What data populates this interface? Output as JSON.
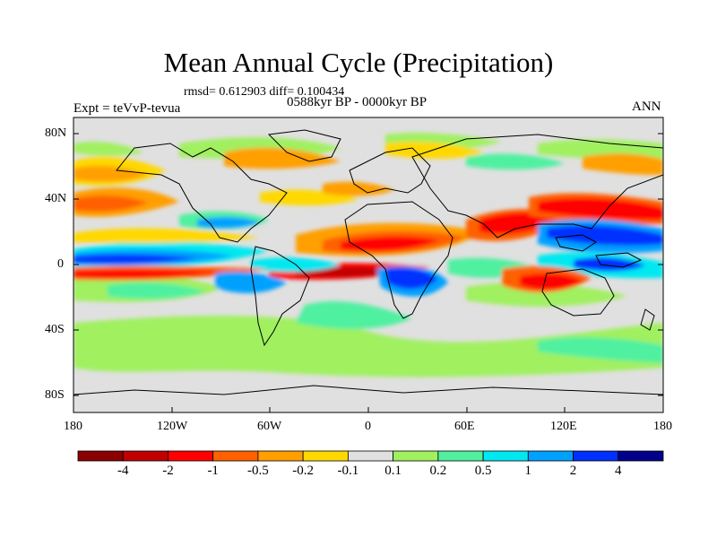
{
  "title": "Mean Annual Cycle (Precipitation)",
  "stats": "rmsd= 0.612903 diff= 0.100434",
  "experiment": "Expt = teVvP-tevua",
  "period": "0588kyr BP - 0000kyr BP",
  "season": "ANN",
  "lat_labels": [
    "80N",
    "40N",
    "0",
    "40S",
    "80S"
  ],
  "lon_labels": [
    "180",
    "120W",
    "60W",
    "0",
    "60E",
    "120E",
    "180"
  ],
  "colorbar": {
    "labels": [
      "-4",
      "-2",
      "-1",
      "-0.5",
      "-0.2",
      "-0.1",
      "0.1",
      "0.2",
      "0.5",
      "1",
      "2",
      "4"
    ],
    "colors": [
      "#8b0000",
      "#c00000",
      "#ff0000",
      "#ff6000",
      "#ff9f00",
      "#ffd800",
      "#e0e0e0",
      "#a0f060",
      "#50f0a0",
      "#00e8f0",
      "#00a0ff",
      "#0030ff",
      "#00008b"
    ]
  }
}
